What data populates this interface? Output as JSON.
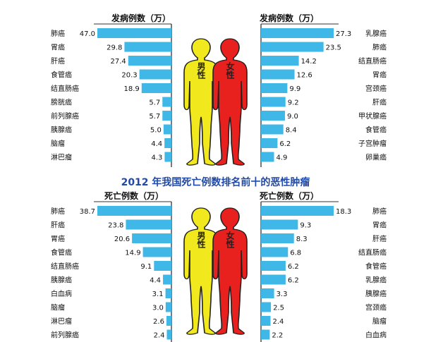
{
  "title": "2012 年我国死亡例数排名前十的恶性肿瘤",
  "figure_labels": {
    "male": "男性",
    "female": "女性"
  },
  "colors": {
    "bar": "#3fb8e8",
    "male_fill": "#f2e81e",
    "female_fill": "#e8201e",
    "title": "#1f4aa8",
    "axis": "#333333"
  },
  "chart_data": [
    {
      "type": "bar",
      "title": "发病例数（万）",
      "series": [
        {
          "name": "男性",
          "values": [
            47.0,
            29.8,
            27.4,
            20.3,
            18.9,
            5.7,
            5.7,
            5.0,
            4.4,
            4.3
          ]
        }
      ],
      "categories": [
        "肺癌",
        "胃癌",
        "肝癌",
        "食管癌",
        "结直肠癌",
        "膀胱癌",
        "前列腺癌",
        "胰腺癌",
        "脑瘤",
        "淋巴瘤"
      ],
      "values": [
        47.0,
        29.8,
        27.4,
        20.3,
        18.9,
        5.7,
        5.7,
        5.0,
        4.4,
        4.3
      ],
      "xlim": [
        0,
        47
      ]
    },
    {
      "type": "bar",
      "title": "发病例数（万）",
      "series": [
        {
          "name": "女性",
          "values": [
            27.3,
            23.5,
            14.2,
            12.6,
            9.9,
            9.2,
            9.0,
            8.4,
            6.2,
            4.9
          ]
        }
      ],
      "categories": [
        "乳腺癌",
        "肺癌",
        "结直肠癌",
        "胃癌",
        "宫颈癌",
        "肝癌",
        "甲状腺癌",
        "食管癌",
        "子宫肿瘤",
        "卵巢癌"
      ],
      "values": [
        27.3,
        23.5,
        14.2,
        12.6,
        9.9,
        9.2,
        9.0,
        8.4,
        6.2,
        4.9
      ],
      "xlim": [
        0,
        27.3
      ]
    },
    {
      "type": "bar",
      "title": "死亡例数（万）",
      "series": [
        {
          "name": "男性",
          "values": [
            38.7,
            23.8,
            20.6,
            14.9,
            9.1,
            4.4,
            3.1,
            3.0,
            2.6,
            2.4
          ]
        }
      ],
      "categories": [
        "肺癌",
        "肝癌",
        "胃癌",
        "食管癌",
        "结直肠癌",
        "胰腺癌",
        "白血病",
        "脑瘤",
        "淋巴瘤",
        "前列腺癌"
      ],
      "values": [
        38.7,
        23.8,
        20.6,
        14.9,
        9.1,
        4.4,
        3.1,
        3.0,
        2.6,
        2.4
      ],
      "xlim": [
        0,
        38.7
      ]
    },
    {
      "type": "bar",
      "title": "死亡例数（万）",
      "series": [
        {
          "name": "女性",
          "values": [
            18.3,
            9.3,
            8.3,
            6.8,
            6.2,
            6.2,
            3.3,
            2.5,
            2.4,
            2.2
          ]
        }
      ],
      "categories": [
        "肺癌",
        "胃癌",
        "肝癌",
        "结直肠癌",
        "食管癌",
        "乳腺癌",
        "胰腺癌",
        "宫颈癌",
        "脑瘤",
        "白血病"
      ],
      "values": [
        18.3,
        9.3,
        8.3,
        6.8,
        6.2,
        6.2,
        3.3,
        2.5,
        2.4,
        2.2
      ],
      "xlim": [
        0,
        18.3
      ]
    }
  ]
}
